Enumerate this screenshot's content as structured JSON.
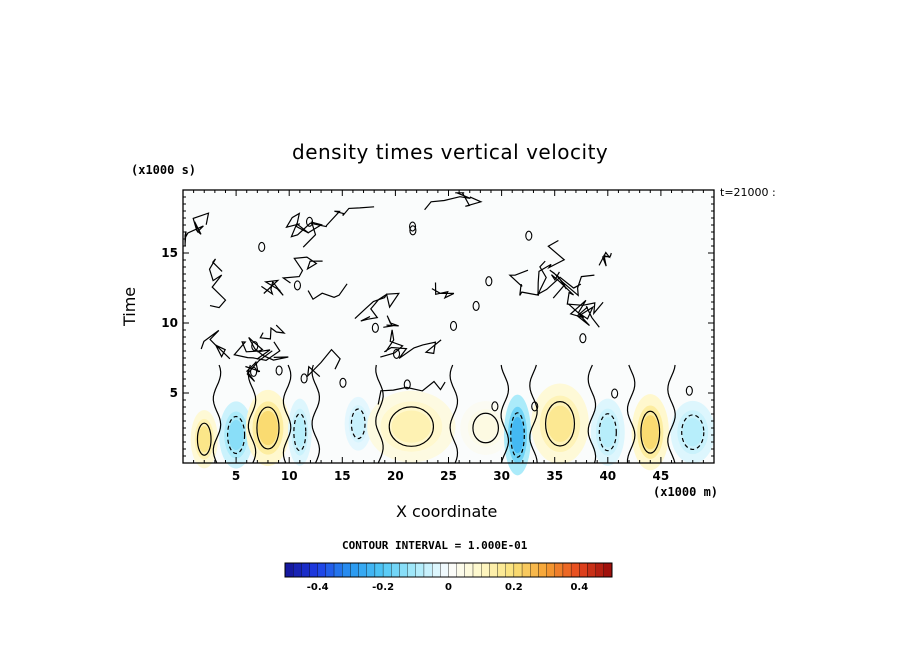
{
  "chart_data": {
    "type": "heatmap",
    "title": "density times vertical velocity",
    "xlabel": "X coordinate",
    "ylabel": "Time",
    "x_unit": "(x1000 m)",
    "y_unit": "(x1000 s)",
    "time_label": "t=21000 :",
    "xlim": [
      0,
      50
    ],
    "ylim": [
      0,
      19.5
    ],
    "x_ticks": [
      5,
      10,
      15,
      20,
      25,
      30,
      35,
      40,
      45
    ],
    "x_tick_labels": [
      "5",
      "10",
      "15",
      "20",
      "25",
      "30",
      "35",
      "40",
      "45"
    ],
    "y_ticks": [
      5,
      10,
      15
    ],
    "y_tick_labels": [
      "5",
      "10",
      "15"
    ],
    "contour_interval_label": "CONTOUR INTERVAL = 1.000E-01",
    "colorbar": {
      "range": [
        -0.5,
        0.5
      ],
      "ticks": [
        -0.4,
        -0.2,
        0,
        0.2,
        0.4
      ],
      "tick_labels": [
        "-0.4",
        "-0.2",
        "0",
        "0.2",
        "0.4"
      ]
    },
    "features": [
      {
        "x": 2,
        "t": 1.7,
        "value": 0.17,
        "sx": 0.8,
        "st": 1.3
      },
      {
        "x": 5,
        "t": 2.0,
        "value": -0.13,
        "sx": 1.0,
        "st": 1.5
      },
      {
        "x": 8,
        "t": 2.5,
        "value": 0.2,
        "sx": 1.3,
        "st": 1.7
      },
      {
        "x": 11,
        "t": 2.2,
        "value": -0.08,
        "sx": 0.7,
        "st": 1.5
      },
      {
        "x": 16.5,
        "t": 2.8,
        "value": -0.06,
        "sx": 0.8,
        "st": 1.2
      },
      {
        "x": 21.5,
        "t": 2.6,
        "value": 0.12,
        "sx": 2.6,
        "st": 1.6
      },
      {
        "x": 28.5,
        "t": 2.5,
        "value": 0.05,
        "sx": 1.5,
        "st": 1.2
      },
      {
        "x": 31.5,
        "t": 2.0,
        "value": -0.22,
        "sx": 0.8,
        "st": 1.8
      },
      {
        "x": 35.5,
        "t": 2.8,
        "value": 0.16,
        "sx": 1.7,
        "st": 1.8
      },
      {
        "x": 40,
        "t": 2.2,
        "value": -0.08,
        "sx": 1.0,
        "st": 1.5
      },
      {
        "x": 44,
        "t": 2.2,
        "value": 0.2,
        "sx": 1.1,
        "st": 1.7
      },
      {
        "x": 48,
        "t": 2.2,
        "value": -0.08,
        "sx": 1.3,
        "st": 1.4
      }
    ]
  }
}
